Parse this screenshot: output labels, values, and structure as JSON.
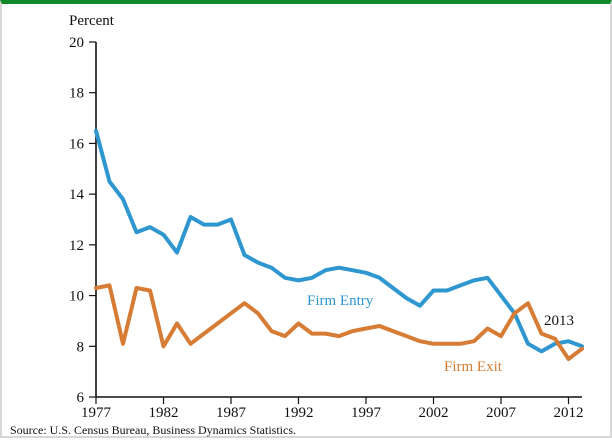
{
  "chart_data": {
    "type": "line",
    "ylabel": "Percent",
    "ylim": [
      6,
      20
    ],
    "y_ticks": [
      6,
      8,
      10,
      12,
      14,
      16,
      18,
      20
    ],
    "x_ticks": [
      1977,
      1982,
      1987,
      1992,
      1997,
      2002,
      2007,
      2012
    ],
    "x": [
      1977,
      1978,
      1979,
      1980,
      1981,
      1982,
      1983,
      1984,
      1985,
      1986,
      1987,
      1988,
      1989,
      1990,
      1991,
      1992,
      1993,
      1994,
      1995,
      1996,
      1997,
      1998,
      1999,
      2000,
      2001,
      2002,
      2003,
      2004,
      2005,
      2006,
      2007,
      2008,
      2009,
      2010,
      2011,
      2012,
      2013
    ],
    "series": [
      {
        "name": "Firm Entry",
        "color": "#2f97cf",
        "values": [
          16.5,
          14.5,
          13.8,
          12.5,
          12.7,
          12.4,
          11.7,
          13.1,
          12.8,
          12.8,
          13.0,
          11.6,
          11.3,
          11.1,
          10.7,
          10.6,
          10.7,
          11.0,
          11.1,
          11.0,
          10.9,
          10.7,
          10.3,
          9.9,
          9.6,
          10.2,
          10.2,
          10.4,
          10.6,
          10.7,
          10.0,
          9.3,
          8.1,
          7.8,
          8.1,
          8.2,
          8.0
        ]
      },
      {
        "name": "Firm Exit",
        "color": "#d77c34",
        "values": [
          10.3,
          10.4,
          8.1,
          10.3,
          10.2,
          8.0,
          8.9,
          8.1,
          8.5,
          8.9,
          9.3,
          9.7,
          9.3,
          8.6,
          8.4,
          8.9,
          8.5,
          8.5,
          8.4,
          8.6,
          8.7,
          8.8,
          8.6,
          8.4,
          8.2,
          8.1,
          8.1,
          8.1,
          8.2,
          8.7,
          8.4,
          9.3,
          9.7,
          8.5,
          8.3,
          7.5,
          7.9
        ]
      }
    ],
    "annotation": "2013",
    "source": "Source: U.S. Census Bureau, Business Dynamics Statistics."
  }
}
